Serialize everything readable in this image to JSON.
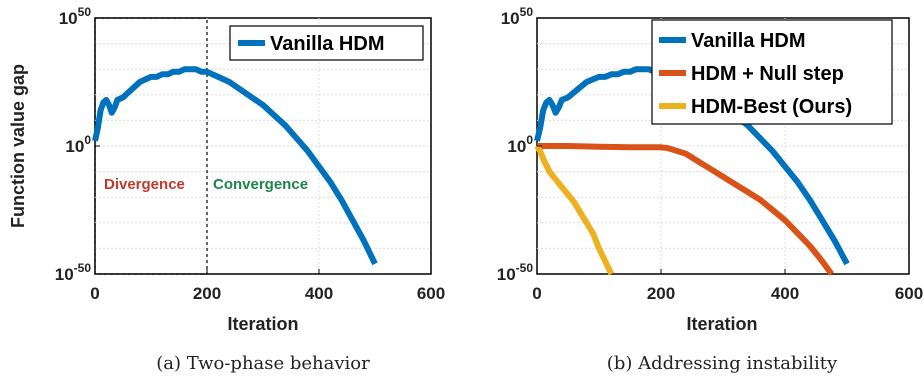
{
  "chart_data": [
    {
      "type": "line",
      "panel_caption": "(a) Two-phase behavior",
      "xlabel": "Iteration",
      "ylabel": "Function value gap",
      "xlim": [
        0,
        600
      ],
      "ylim_exp": [
        -50,
        50
      ],
      "yscale": "log",
      "xticks": [
        "0",
        "200",
        "400",
        "600"
      ],
      "yticks": [
        {
          "base": "10",
          "exp": "50"
        },
        {
          "base": "10",
          "exp": "0"
        },
        {
          "base": "10",
          "exp": "-50"
        }
      ],
      "grid": true,
      "legend": "top-right",
      "annotations": [
        {
          "text": "Divergence",
          "color": "#c0392b"
        },
        {
          "text": "Convergence",
          "color": "#1e8449"
        }
      ],
      "phase_region_x": [
        0,
        200
      ],
      "series": [
        {
          "name": "Vanilla HDM",
          "color": "#0072BD",
          "x": [
            0,
            5,
            10,
            15,
            20,
            25,
            30,
            35,
            40,
            50,
            60,
            70,
            80,
            90,
            100,
            110,
            120,
            130,
            140,
            150,
            160,
            170,
            180,
            190,
            200,
            220,
            240,
            260,
            280,
            300,
            320,
            340,
            360,
            380,
            400,
            420,
            440,
            460,
            480,
            500
          ],
          "y_exp": [
            2,
            7,
            14,
            17,
            18,
            16,
            13,
            15,
            18,
            19,
            21,
            23,
            25,
            26,
            27,
            27,
            28,
            28,
            29,
            29,
            30,
            30,
            30,
            29,
            29,
            27,
            25,
            22,
            19,
            16,
            12,
            8,
            3,
            -2,
            -8,
            -14,
            -21,
            -29,
            -37,
            -46
          ]
        }
      ]
    },
    {
      "type": "line",
      "panel_caption": "(b) Addressing instability",
      "xlabel": "Iteration",
      "ylabel": "",
      "xlim": [
        0,
        600
      ],
      "ylim_exp": [
        -50,
        50
      ],
      "yscale": "log",
      "xticks": [
        "0",
        "200",
        "400",
        "600"
      ],
      "yticks": [
        {
          "base": "10",
          "exp": "50"
        },
        {
          "base": "10",
          "exp": "0"
        },
        {
          "base": "10",
          "exp": "-50"
        }
      ],
      "grid": true,
      "legend": "top-right",
      "series": [
        {
          "name": "Vanilla HDM",
          "color": "#0072BD",
          "x": [
            0,
            5,
            10,
            15,
            20,
            25,
            30,
            35,
            40,
            50,
            60,
            70,
            80,
            90,
            100,
            110,
            120,
            130,
            140,
            150,
            160,
            170,
            180,
            190,
            200,
            220,
            240,
            260,
            280,
            300,
            320,
            340,
            360,
            380,
            400,
            420,
            440,
            460,
            480,
            500
          ],
          "y_exp": [
            2,
            7,
            14,
            17,
            18,
            16,
            13,
            15,
            18,
            19,
            21,
            23,
            25,
            26,
            27,
            27,
            28,
            28,
            29,
            29,
            30,
            30,
            30,
            29,
            29,
            27,
            25,
            22,
            19,
            16,
            12,
            8,
            3,
            -2,
            -8,
            -14,
            -21,
            -29,
            -37,
            -46
          ]
        },
        {
          "name": "HDM + Null step",
          "color": "#D95319",
          "x": [
            0,
            20,
            50,
            100,
            150,
            200,
            210,
            220,
            240,
            260,
            280,
            300,
            320,
            340,
            360,
            380,
            400,
            420,
            440,
            460,
            475
          ],
          "y_exp": [
            0,
            0,
            0,
            -0.3,
            -0.5,
            -0.5,
            -0.8,
            -1.5,
            -3,
            -6,
            -9,
            -12,
            -15,
            -18,
            -21,
            -25,
            -29,
            -34,
            -39,
            -45,
            -50
          ]
        },
        {
          "name": "HDM-Best (Ours)",
          "color": "#EDB120",
          "x": [
            0,
            5,
            10,
            20,
            30,
            40,
            50,
            60,
            70,
            80,
            90,
            100,
            110,
            120
          ],
          "y_exp": [
            0,
            -2,
            -5,
            -10,
            -13,
            -16,
            -19,
            -22,
            -26,
            -30,
            -34,
            -40,
            -45,
            -50
          ]
        }
      ]
    }
  ]
}
